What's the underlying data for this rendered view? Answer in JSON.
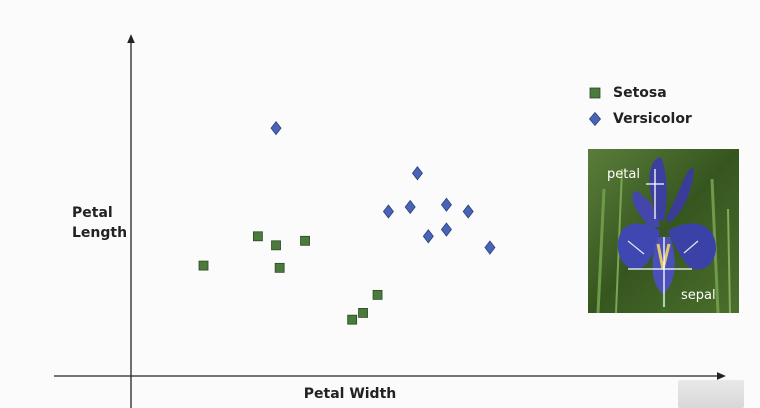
{
  "chart_data": {
    "type": "scatter",
    "xlabel": "Petal Width",
    "ylabel": "Petal\nLength",
    "series": [
      {
        "name": "Setosa",
        "marker": "square",
        "color": "#4a7a3c",
        "points": [
          [
            1.0,
            4.4
          ],
          [
            2.5,
            5.7
          ],
          [
            3.0,
            5.3
          ],
          [
            3.1,
            4.3
          ],
          [
            3.8,
            5.5
          ],
          [
            5.1,
            2.0
          ],
          [
            5.4,
            2.3
          ],
          [
            5.8,
            3.1
          ]
        ]
      },
      {
        "name": "Versicolor",
        "marker": "diamond",
        "color": "#4964b4",
        "points": [
          [
            3.0,
            10.5
          ],
          [
            6.1,
            6.8
          ],
          [
            6.7,
            7.0
          ],
          [
            6.9,
            8.5
          ],
          [
            7.2,
            5.7
          ],
          [
            7.7,
            7.1
          ],
          [
            7.7,
            6.0
          ],
          [
            8.3,
            6.8
          ],
          [
            8.9,
            5.2
          ]
        ]
      }
    ],
    "xlim": [
      -1.0,
      15.3
    ],
    "ylim": [
      -0.5,
      14.5
    ],
    "grid": false,
    "legend_position": "top-right"
  },
  "photo": {
    "label_petal": "petal",
    "label_sepal": "sepal"
  },
  "colors": {
    "axis": "#222222",
    "setosa": "#4a7a3c",
    "versicolor": "#4964b4"
  }
}
